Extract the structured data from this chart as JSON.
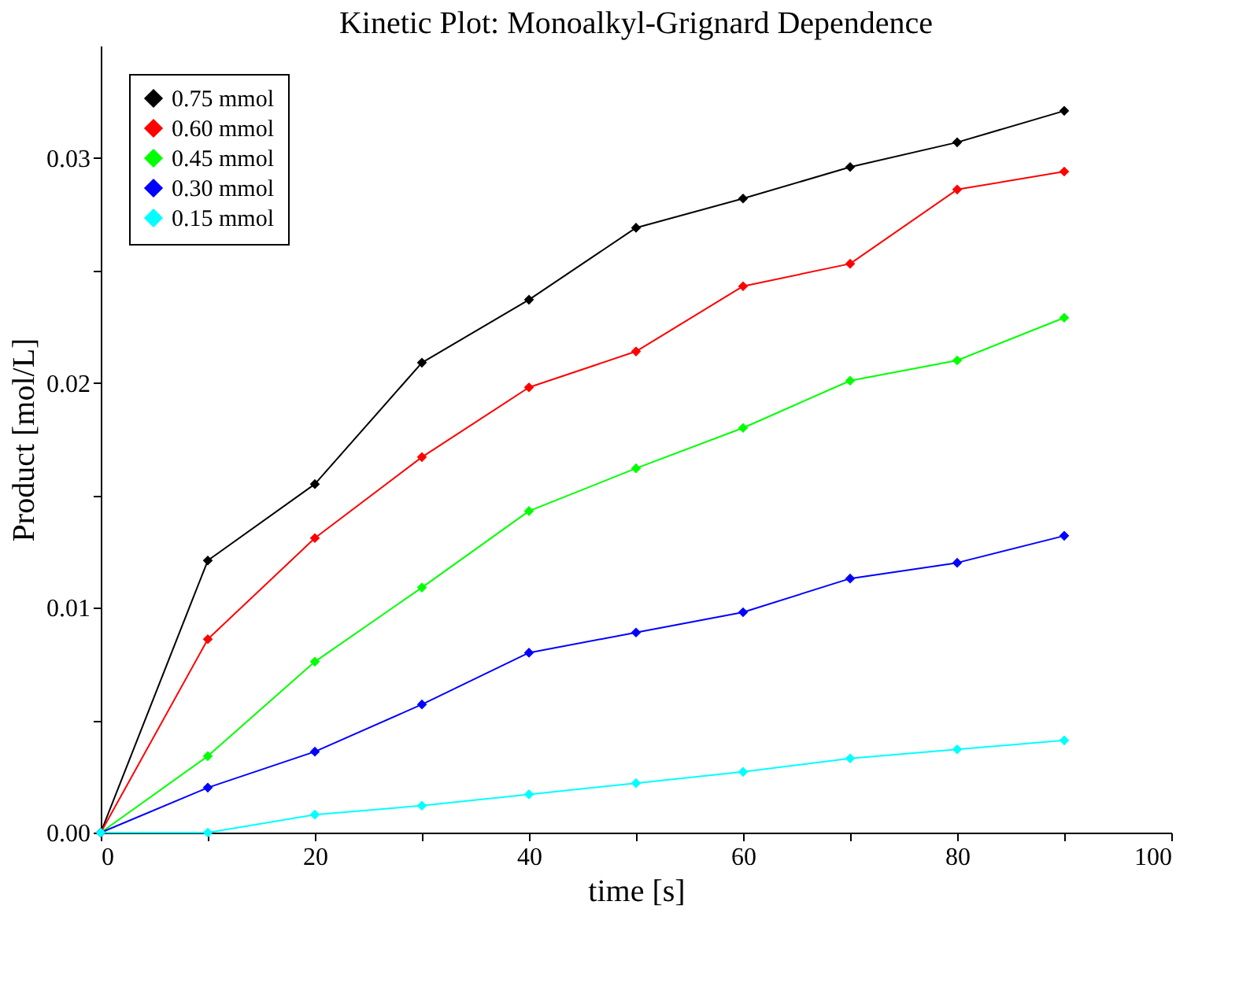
{
  "chart_data": {
    "type": "line",
    "title": "Kinetic Plot: Monoalkyl-Grignard Dependence",
    "xlabel": "time [s]",
    "ylabel": "Product [mol/L]",
    "x": [
      0,
      10,
      20,
      30,
      40,
      50,
      60,
      70,
      80,
      90
    ],
    "series": [
      {
        "name": "0.75 mmol",
        "color": "#000000",
        "values": [
          0,
          0.0121,
          0.0155,
          0.0209,
          0.0237,
          0.0269,
          0.0282,
          0.0296,
          0.0307,
          0.0321
        ]
      },
      {
        "name": "0.60 mmol",
        "color": "#ff0000",
        "values": [
          0,
          0.0086,
          0.0131,
          0.0167,
          0.0198,
          0.0214,
          0.0243,
          0.0253,
          0.0286,
          0.0294
        ]
      },
      {
        "name": "0.45 mmol",
        "color": "#00ff00",
        "values": [
          0,
          0.0034,
          0.0076,
          0.0109,
          0.0143,
          0.0162,
          0.018,
          0.0201,
          0.021,
          0.0229
        ]
      },
      {
        "name": "0.30 mmol",
        "color": "#0000ff",
        "values": [
          0,
          0.002,
          0.0036,
          0.0057,
          0.008,
          0.0089,
          0.0098,
          0.0113,
          0.012,
          0.0132
        ]
      },
      {
        "name": "0.15 mmol",
        "color": "#00ffff",
        "values": [
          0,
          0,
          0.0008,
          0.0012,
          0.0017,
          0.0022,
          0.0027,
          0.0033,
          0.0037,
          0.0041
        ]
      }
    ],
    "xlim": [
      0,
      100
    ],
    "xticks": [
      0,
      {
        "value": 10,
        "label": null
      },
      20,
      {
        "value": 30,
        "label": null
      },
      40,
      {
        "value": 50,
        "label": null
      },
      60,
      {
        "value": 70,
        "label": null
      },
      80,
      {
        "value": 90,
        "label": null
      },
      100
    ],
    "ylim": [
      0,
      0.035
    ],
    "yticks": [
      {
        "value": 0,
        "label": "0.00"
      },
      {
        "value": 0.005,
        "label": null
      },
      {
        "value": 0.01,
        "label": "0.01"
      },
      {
        "value": 0.015,
        "label": null
      },
      {
        "value": 0.02,
        "label": "0.02"
      },
      {
        "value": 0.025,
        "label": null
      },
      {
        "value": 0.03,
        "label": "0.03"
      }
    ],
    "grid": false,
    "legend": "top left",
    "marker": "diamond",
    "line_style": "solid"
  }
}
